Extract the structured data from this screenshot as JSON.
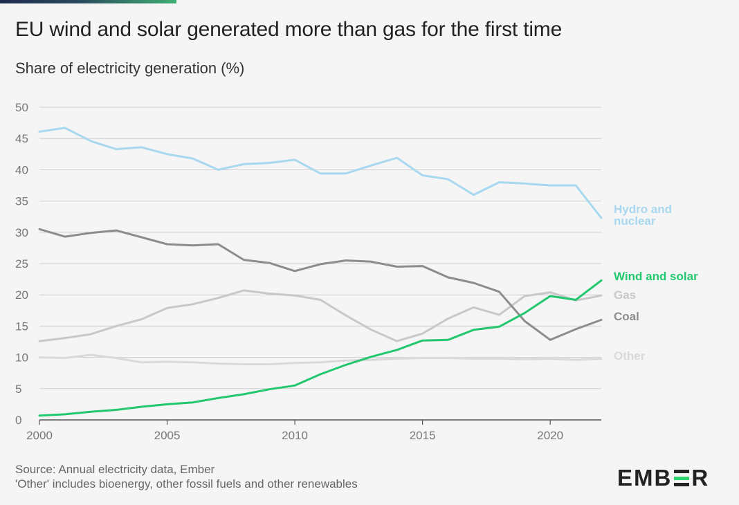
{
  "header": {
    "title": "EU wind and solar generated more than gas for the first time",
    "subtitle": "Share of electricity generation (%)"
  },
  "footer": {
    "source": "Source: Annual electricity data, Ember",
    "note": "'Other' includes bioenergy, other fossil fuels and other renewables"
  },
  "brand": {
    "left": "EMB",
    "middle": "E",
    "right": "R"
  },
  "chart_data": {
    "type": "line",
    "title": "EU wind and solar generated more than gas for the first time",
    "ylabel": "Share of electricity generation (%)",
    "xlabel": "",
    "x": [
      2000,
      2001,
      2002,
      2003,
      2004,
      2005,
      2006,
      2007,
      2008,
      2009,
      2010,
      2011,
      2012,
      2013,
      2014,
      2015,
      2016,
      2017,
      2018,
      2019,
      2020,
      2021,
      2022
    ],
    "xlim": [
      2000,
      2022
    ],
    "ylim": [
      0,
      50
    ],
    "xticks": [
      2000,
      2005,
      2010,
      2015,
      2020
    ],
    "yticks": [
      0,
      5,
      10,
      15,
      20,
      25,
      30,
      35,
      40,
      45,
      50
    ],
    "grid": true,
    "legend": "direct labels at right end of lines",
    "series": [
      {
        "name": "Other",
        "label": "Other",
        "color": "#d9d9d9",
        "values": [
          10.0,
          9.9,
          10.4,
          9.9,
          9.2,
          9.3,
          9.2,
          9.0,
          8.9,
          8.9,
          9.1,
          9.2,
          9.5,
          9.6,
          9.8,
          9.9,
          9.9,
          9.8,
          9.8,
          9.7,
          9.8,
          9.6,
          9.8
        ]
      },
      {
        "name": "Gas",
        "label": "Gas",
        "color": "#c8c8c8",
        "values": [
          12.6,
          13.1,
          13.7,
          15.0,
          16.1,
          17.9,
          18.5,
          19.5,
          20.7,
          20.2,
          19.9,
          19.2,
          16.7,
          14.4,
          12.6,
          13.8,
          16.2,
          18.0,
          16.8,
          19.8,
          20.4,
          19.1,
          19.9
        ]
      },
      {
        "name": "Coal",
        "label": "Coal",
        "color": "#8c8c8c",
        "values": [
          30.5,
          29.3,
          29.9,
          30.3,
          29.2,
          28.1,
          27.9,
          28.1,
          25.6,
          25.1,
          23.8,
          24.9,
          25.5,
          25.3,
          24.5,
          24.6,
          22.8,
          21.9,
          20.5,
          15.8,
          12.8,
          14.5,
          16.0
        ]
      },
      {
        "name": "Hydro and nuclear",
        "label": [
          "Hydro and",
          "nuclear"
        ],
        "color": "#a8d8f0",
        "values": [
          46.1,
          46.7,
          44.6,
          43.3,
          43.6,
          42.5,
          41.8,
          40.0,
          40.9,
          41.1,
          41.6,
          39.4,
          39.4,
          40.7,
          41.9,
          39.1,
          38.5,
          36.0,
          38.0,
          37.8,
          37.5,
          37.5,
          32.3
        ]
      },
      {
        "name": "Wind and solar",
        "label": "Wind and solar",
        "color": "#22c76e",
        "values": [
          0.7,
          0.9,
          1.3,
          1.6,
          2.1,
          2.5,
          2.8,
          3.5,
          4.1,
          4.9,
          5.5,
          7.3,
          8.8,
          10.1,
          11.2,
          12.7,
          12.8,
          14.4,
          14.9,
          17.1,
          19.8,
          19.2,
          22.3
        ]
      }
    ]
  }
}
